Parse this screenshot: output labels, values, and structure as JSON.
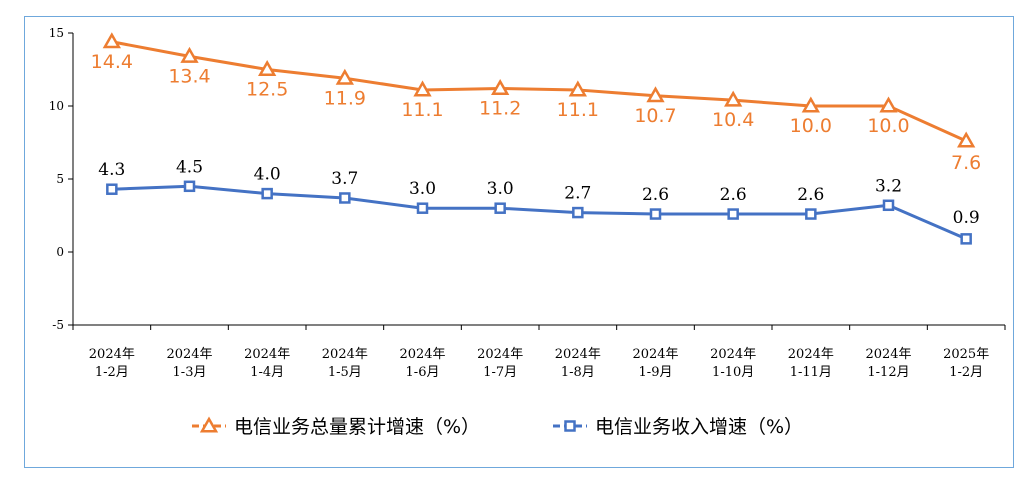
{
  "chart_data": {
    "type": "line",
    "title": "",
    "xlabel": "",
    "ylabel": "",
    "ylim": [
      -5,
      15
    ],
    "yticks": [
      "15",
      "10",
      "5",
      "0",
      "-5"
    ],
    "categories": [
      [
        "2024年",
        "1-2月"
      ],
      [
        "2024年",
        "1-3月"
      ],
      [
        "2024年",
        "1-4月"
      ],
      [
        "2024年",
        "1-5月"
      ],
      [
        "2024年",
        "1-6月"
      ],
      [
        "2024年",
        "1-7月"
      ],
      [
        "2024年",
        "1-8月"
      ],
      [
        "2024年",
        "1-9月"
      ],
      [
        "2024年",
        "1-10月"
      ],
      [
        "2024年",
        "1-11月"
      ],
      [
        "2024年",
        "1-12月"
      ],
      [
        "2025年",
        "1-2月"
      ]
    ],
    "series": [
      {
        "name": "电信业务总量累计增速（%）",
        "color": "#ed7d31",
        "marker": "triangle",
        "values": [
          14.4,
          13.4,
          12.5,
          11.9,
          11.1,
          11.2,
          11.1,
          10.7,
          10.4,
          10.0,
          10.0,
          7.6
        ],
        "labels": [
          "14.4",
          "13.4",
          "12.5",
          "11.9",
          "11.1",
          "11.2",
          "11.1",
          "10.7",
          "10.4",
          "10.0",
          "10.0",
          "7.6"
        ]
      },
      {
        "name": "电信业务收入增速（%）",
        "color": "#4472c4",
        "marker": "square",
        "values": [
          4.3,
          4.5,
          4.0,
          3.7,
          3.0,
          3.0,
          2.7,
          2.6,
          2.6,
          2.6,
          3.2,
          0.9
        ],
        "labels": [
          "4.3",
          "4.5",
          "4.0",
          "3.7",
          "3.0",
          "3.0",
          "2.7",
          "2.6",
          "2.6",
          "2.6",
          "3.2",
          "0.9"
        ]
      }
    ],
    "legend_position": "bottom"
  }
}
